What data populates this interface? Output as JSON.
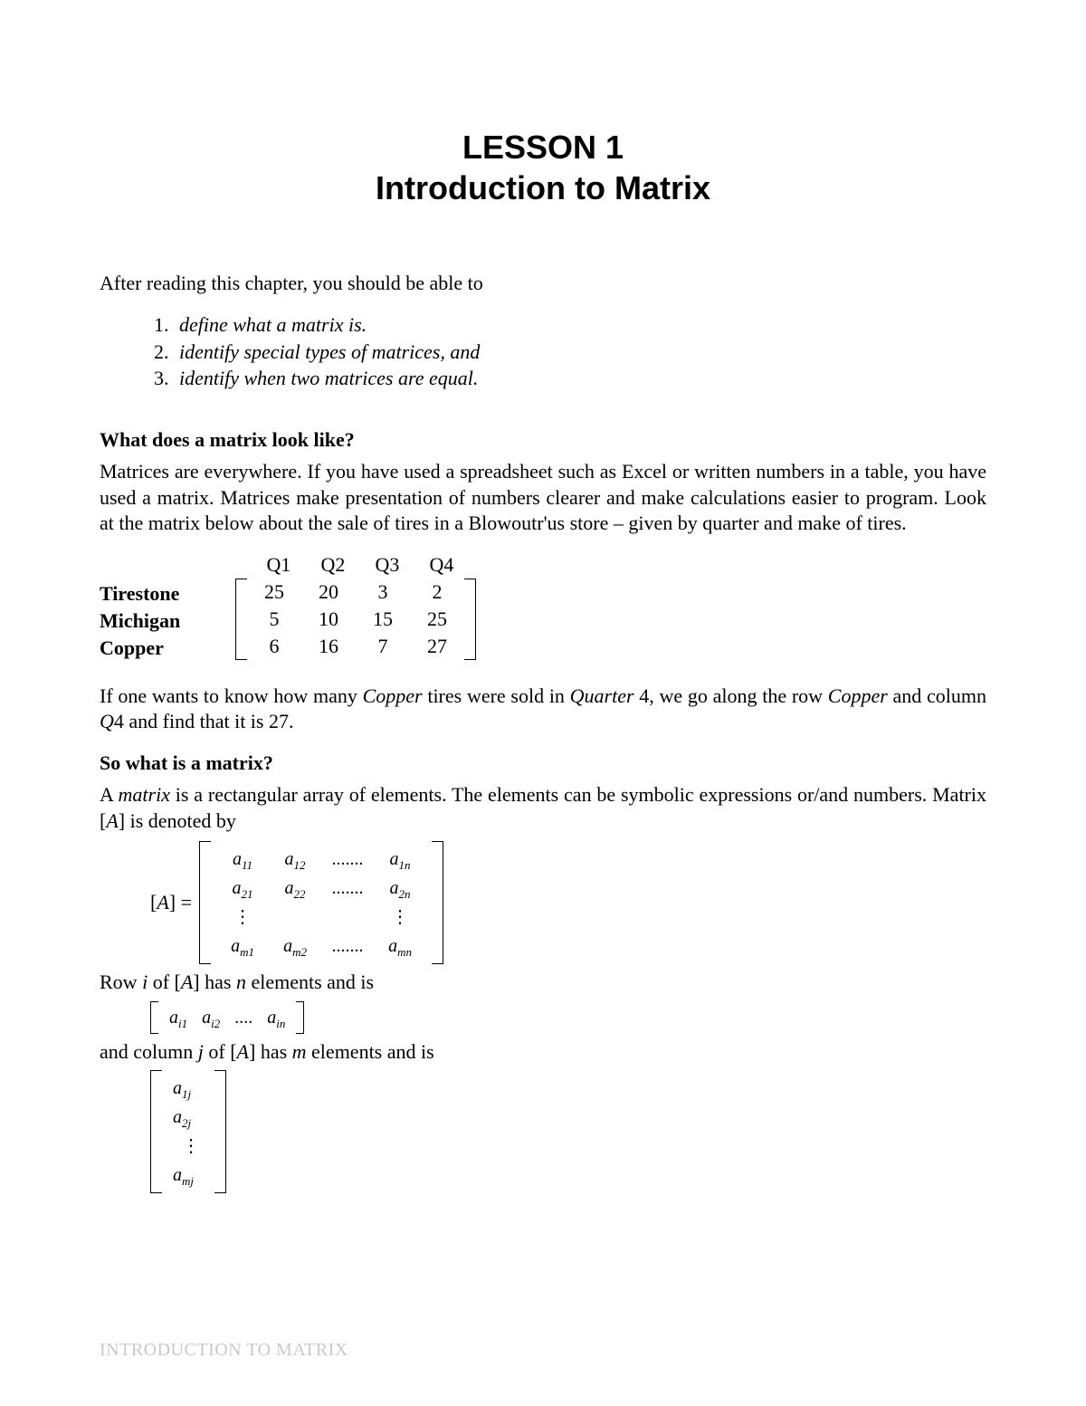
{
  "title": {
    "line1": "LESSON 1",
    "line2": "Introduction to Matrix"
  },
  "intro": "After reading this chapter, you should be able to",
  "objectives": [
    "define what a matrix is.",
    "identify special types of matrices, and",
    "identify when two matrices are equal."
  ],
  "section1": {
    "heading": "What does a matrix look like?",
    "para": "Matrices are everywhere.  If you have used a spreadsheet such as Excel or written numbers in a table, you have used a matrix.   Matrices make presentation of numbers clearer and make calculations easier to program.  Look at the matrix below about the sale of tires in a Blowoutr'us store – given by quarter and make of tires."
  },
  "tire_matrix": {
    "col_headers": [
      "Q1",
      "Q2",
      "Q3",
      "Q4"
    ],
    "row_labels": [
      "Tirestone",
      "Michigan",
      "Copper"
    ],
    "rows": [
      [
        "25",
        "20",
        "3",
        "2"
      ],
      [
        "5",
        "10",
        "15",
        "25"
      ],
      [
        "6",
        "16",
        "7",
        "27"
      ]
    ]
  },
  "section1_after": {
    "prefix": "If one wants to know how many ",
    "copper": "Copper",
    "mid1": " tires were sold in ",
    "quarter": "Quarter",
    "mid2": " 4, we go along the row ",
    "copper2": "Copper",
    "mid3": " and column ",
    "q4": "Q",
    "mid4": "4 and find that it is 27."
  },
  "section2": {
    "heading": "So what is a matrix?",
    "para_prefix": "A ",
    "matrix_word": "matrix",
    "para_mid": " is a rectangular array of elements.  The elements can be symbolic expressions or/and numbers.  Matrix [",
    "A1": "A",
    "para_end": "]  is denoted by"
  },
  "gen_matrix": {
    "lhs": "[A] =",
    "cells": [
      [
        "a_11",
        "a_12",
        ".......",
        "a_1n"
      ],
      [
        "a_21",
        "a_22",
        ".......",
        "a_2n"
      ],
      [
        "vdots",
        "",
        "",
        "vdots"
      ],
      [
        "a_m1",
        "a_m2",
        ".......",
        "a_mn"
      ]
    ]
  },
  "row_line": {
    "t1": "Row ",
    "i": "i ",
    "t2": "of [",
    "A": "A",
    "t3": "]  has ",
    "n": "n",
    "t4": "  elements and is"
  },
  "row_vector": [
    "a_i1",
    "a_i2",
    "....",
    "a_in"
  ],
  "col_line": {
    "t1": "and column  ",
    "j": "j",
    "t2": "  of [",
    "A": "A",
    "t3": "]  has ",
    "m": "m",
    "t4": "  elements and is"
  },
  "col_vector": [
    "a_1j",
    "a_2j",
    "vdots",
    "a_mj"
  ],
  "footer": "INTRODUCTION TO MATRIX"
}
